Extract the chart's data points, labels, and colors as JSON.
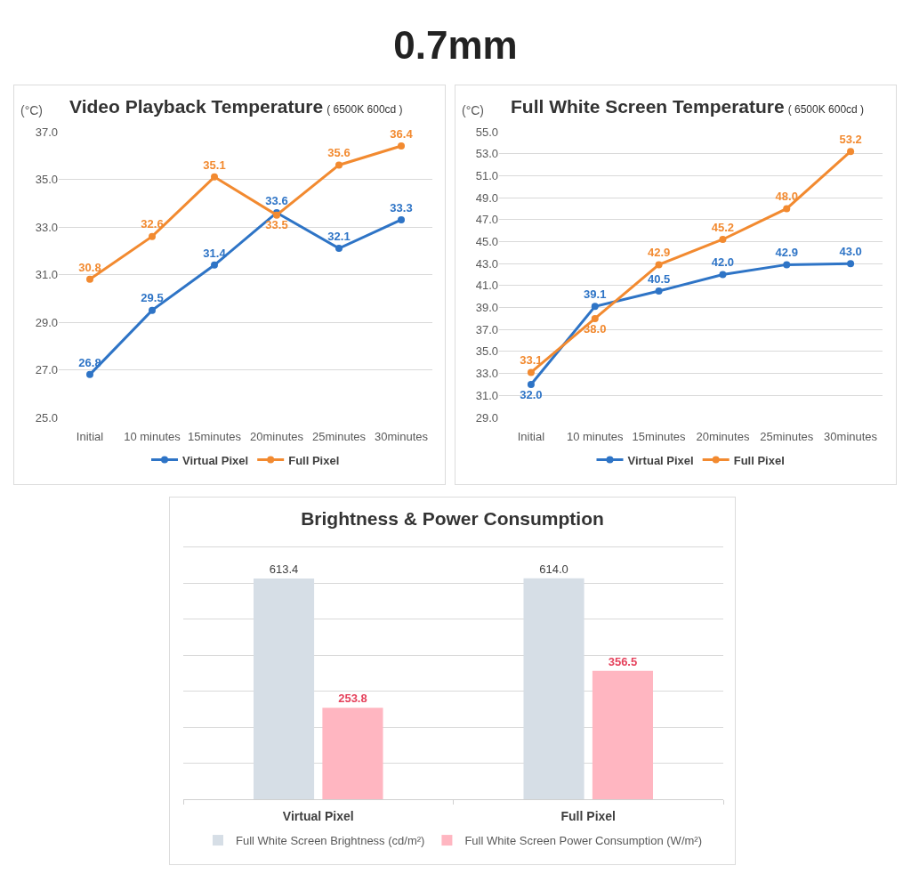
{
  "chart_data": [
    {
      "type": "other",
      "title": "0.7mm"
    },
    {
      "type": "line",
      "title": "Video Playback Temperature",
      "subtitle": "( 6500K 600cd )",
      "ylabel": "(°C)",
      "categories": [
        "Initial",
        "10 minutes",
        "15minutes",
        "20minutes",
        "25minutes",
        "30minutes"
      ],
      "series": [
        {
          "name": "Virtual Pixel",
          "color": "#2e74c6",
          "values": [
            26.8,
            29.5,
            31.4,
            33.6,
            32.1,
            33.3
          ],
          "value_labels": [
            "26.8",
            "29.5",
            "31.4",
            "33.6",
            "32.1",
            "33.3"
          ]
        },
        {
          "name": "Full Pixel",
          "color": "#f28a30",
          "values": [
            30.8,
            32.6,
            35.1,
            33.5,
            35.6,
            36.4
          ],
          "value_labels": [
            "30.8",
            "32.6",
            "35.1",
            "33.5",
            "35.6",
            "36.4"
          ]
        }
      ],
      "ylim": [
        25,
        37
      ],
      "yticks": [
        {
          "value": 25,
          "label": "25.0"
        },
        {
          "value": 27,
          "label": "27.0"
        },
        {
          "value": 29,
          "label": "29.0"
        },
        {
          "value": 31,
          "label": "31.0"
        },
        {
          "value": 33,
          "label": "33.0"
        },
        {
          "value": 35,
          "label": "35.0"
        },
        {
          "value": 37,
          "label": "37.0"
        }
      ],
      "grid": "y",
      "legend": "bottom",
      "marker": "circle",
      "line_style": "solid"
    },
    {
      "type": "line",
      "title": "Full White Screen Temperature",
      "subtitle": "( 6500K 600cd )",
      "ylabel": "(°C)",
      "categories": [
        "Initial",
        "10 minutes",
        "15minutes",
        "20minutes",
        "25minutes",
        "30minutes"
      ],
      "series": [
        {
          "name": "Virtual Pixel",
          "color": "#2e74c6",
          "values": [
            32.0,
            39.1,
            40.5,
            42.0,
            42.9,
            43.0
          ],
          "value_labels": [
            "32.0",
            "39.1",
            "40.5",
            "42.0",
            "42.9",
            "43.0"
          ]
        },
        {
          "name": "Full Pixel",
          "color": "#f28a30",
          "values": [
            33.1,
            38.0,
            42.9,
            45.2,
            48.0,
            53.2
          ],
          "value_labels": [
            "33.1",
            "38.0",
            "42.9",
            "45.2",
            "48.0",
            "53.2"
          ]
        }
      ],
      "ylim": [
        29,
        55
      ],
      "yticks": [
        {
          "value": 29,
          "label": "29.0"
        },
        {
          "value": 31,
          "label": "31.0"
        },
        {
          "value": 33,
          "label": "33.0"
        },
        {
          "value": 35,
          "label": "35.0"
        },
        {
          "value": 37,
          "label": "37.0"
        },
        {
          "value": 39,
          "label": "39.0"
        },
        {
          "value": 41,
          "label": "41.0"
        },
        {
          "value": 43,
          "label": "43.0"
        },
        {
          "value": 45,
          "label": "45.0"
        },
        {
          "value": 47,
          "label": "47.0"
        },
        {
          "value": 49,
          "label": "49.0"
        },
        {
          "value": 51,
          "label": "51.0"
        },
        {
          "value": 53,
          "label": "53.0"
        },
        {
          "value": 55,
          "label": "55.0"
        }
      ],
      "grid": "y",
      "legend": "bottom",
      "marker": "circle",
      "line_style": "solid"
    },
    {
      "type": "bar",
      "title": "Brightness & Power Consumption",
      "categories": [
        "Virtual Pixel",
        "Full Pixel"
      ],
      "series": [
        {
          "name": "Full White Screen Brightness (cd/m²)",
          "color": "#d6dee6",
          "values": [
            613.4,
            614.0
          ],
          "value_labels": [
            "613.4",
            "614.0"
          ]
        },
        {
          "name": "Full White Screen Power Consumption (W/m²)",
          "color": "#ffb6c1",
          "values": [
            253.8,
            356.5
          ],
          "value_labels": [
            "253.8",
            "356.5"
          ]
        }
      ],
      "tick_labels": "x",
      "grid": "y",
      "legend": "bottom"
    }
  ]
}
